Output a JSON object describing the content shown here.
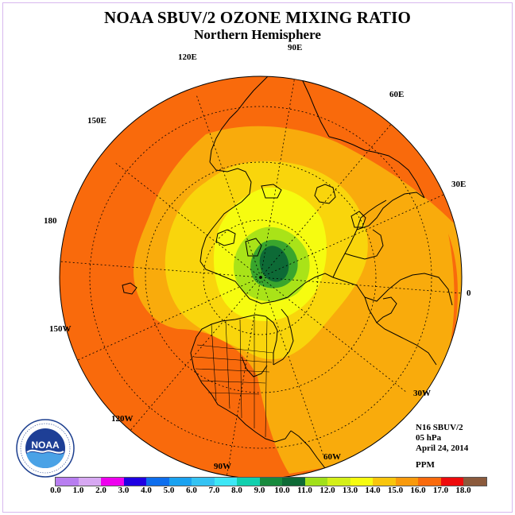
{
  "header": {
    "title": "NOAA SBUV/2 OZONE MIXING RATIO",
    "subtitle": "Northern Hemisphere"
  },
  "map": {
    "projection": "north-polar-stereographic",
    "longitude_labels": [
      "90E",
      "60E",
      "30E",
      "0",
      "30W",
      "60W",
      "90W",
      "120W",
      "150W",
      "180",
      "150E",
      "120E"
    ],
    "field_colors": {
      "background_ring": "#f96a0c",
      "mid_band": "#f9ab0c",
      "inner_band": "#f9d50c",
      "yellow_zone": "#f6fc10",
      "light_green_zone": "#a9e318",
      "green_zone": "#39a52d",
      "dark_green_core": "#0d6a36"
    }
  },
  "info": {
    "instrument": "N16 SBUV/2",
    "level": "05 hPa",
    "date": "April 24, 2014",
    "units": "PPM"
  },
  "colorbar": {
    "colors": [
      "#b87ef0",
      "#d7a8f2",
      "#ee00ee",
      "#1f00e3",
      "#0e6eed",
      "#1aa2f0",
      "#35c3f3",
      "#3de7f6",
      "#11d0ae",
      "#188a3d",
      "#0e6a36",
      "#a1e01a",
      "#d4ef19",
      "#f6fc10",
      "#f9c50c",
      "#f99a0c",
      "#f96a0c",
      "#ee0b0c",
      "#8b5a3c"
    ],
    "ticks": [
      "0.0",
      "1.0",
      "2.0",
      "3.0",
      "4.0",
      "5.0",
      "6.0",
      "7.0",
      "8.0",
      "9.0",
      "10.0",
      "11.0",
      "12.0",
      "13.0",
      "14.0",
      "15.0",
      "16.0",
      "17.0",
      "18.0"
    ]
  },
  "logo": {
    "text": "NOAA"
  }
}
